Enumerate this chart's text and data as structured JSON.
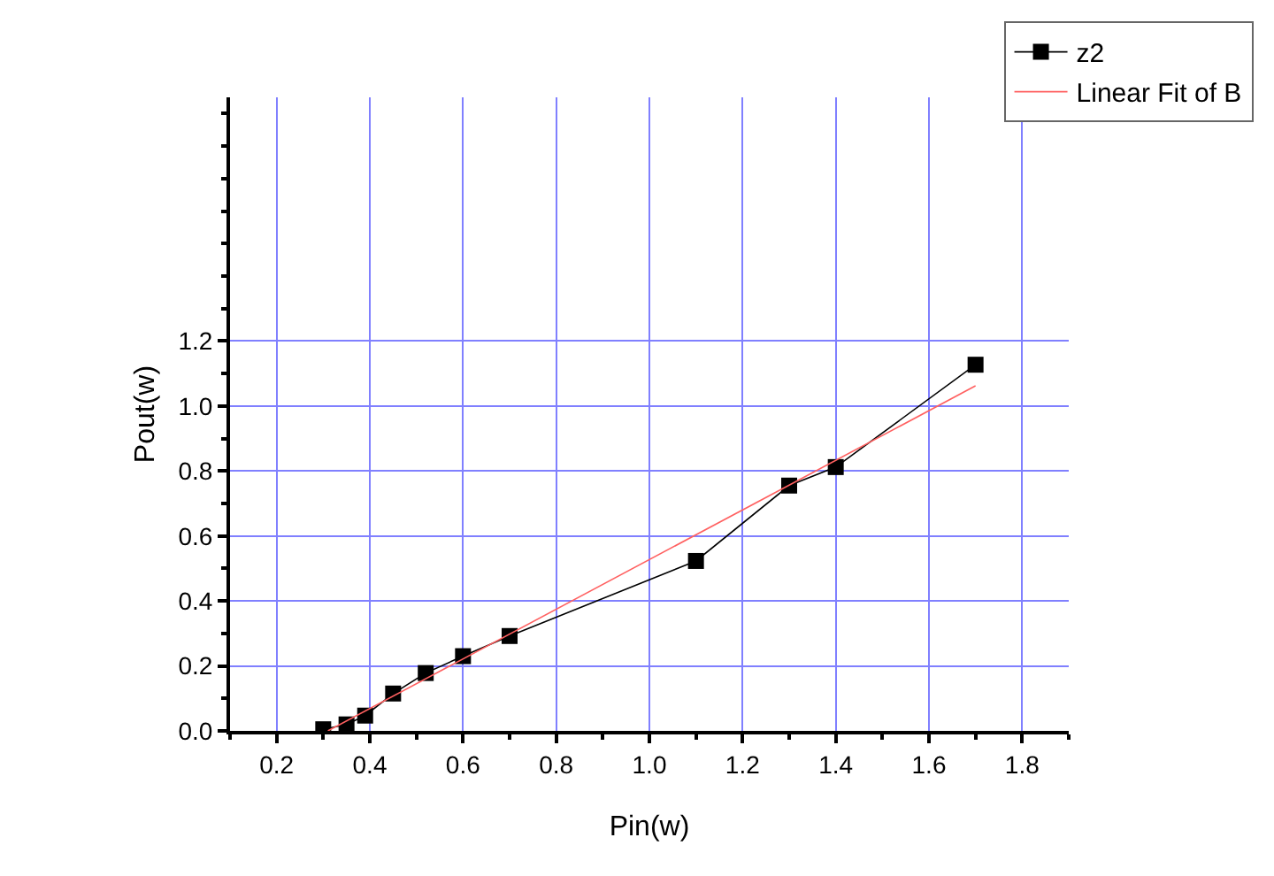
{
  "chart_data": {
    "type": "line",
    "xlabel": "Pin(w)",
    "ylabel": "Pout(w)",
    "xlim": [
      0.1,
      1.9
    ],
    "ylim": [
      0,
      1.95
    ],
    "xticks": [
      0.2,
      0.4,
      0.6,
      0.8,
      {
        "value": 1.0,
        "label": "1.0"
      },
      1.2,
      1.4,
      1.6,
      1.8
    ],
    "yticks": [
      {
        "value": 0,
        "label": "0.0"
      },
      0.2,
      0.4,
      0.6,
      0.8,
      {
        "value": 1.0,
        "label": "1.0"
      },
      1.2
    ],
    "grid": true,
    "legend": "top right",
    "marker": "square",
    "series": [
      {
        "name": "z2",
        "color": "#000000",
        "x": [
          0.3,
          0.35,
          0.39,
          0.45,
          0.52,
          0.6,
          0.7,
          1.1,
          1.3,
          1.4,
          1.7
        ],
        "values": [
          0.005,
          0.02,
          0.047,
          0.115,
          0.178,
          0.23,
          0.292,
          0.523,
          0.755,
          0.812,
          1.127
        ]
      },
      {
        "name": "Linear Fit of B",
        "type": "line",
        "marker": "none",
        "color": "#ff6060",
        "x": [
          0.31,
          1.7
        ],
        "values": [
          0,
          1.062
        ]
      }
    ]
  }
}
